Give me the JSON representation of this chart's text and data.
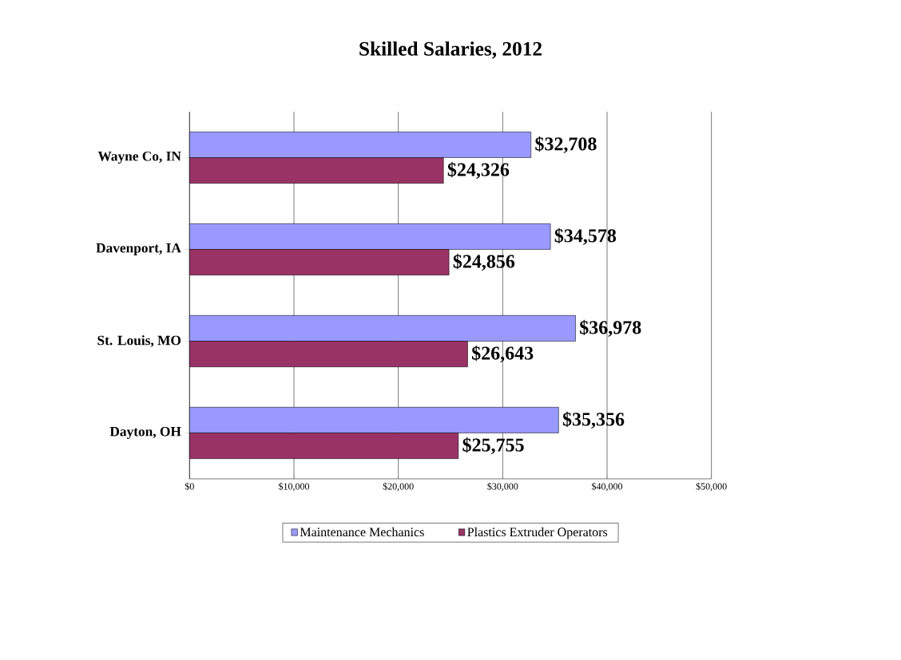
{
  "chart_data": {
    "type": "bar",
    "orientation": "horizontal",
    "title": "Skilled Salaries, 2012",
    "categories": [
      "Wayne Co, IN",
      "Davenport, IA",
      "St. Louis, MO",
      "Dayton, OH"
    ],
    "series": [
      {
        "name": "Maintenance Mechanics",
        "color": "#9999ff",
        "values": [
          32708,
          34578,
          36978,
          35356
        ],
        "value_labels": [
          "$32,708",
          "$34,578",
          "$36,978",
          "$35,356"
        ]
      },
      {
        "name": "Plastics Extruder Operators",
        "color": "#993366",
        "values": [
          24326,
          24856,
          26643,
          25755
        ],
        "value_labels": [
          "$24,326",
          "$24,856",
          "$26,643",
          "$25,755"
        ]
      }
    ],
    "xlim": [
      0,
      50000
    ],
    "xticks": [
      {
        "value": 0,
        "label": "$0"
      },
      {
        "value": 10000,
        "label": "$10,000"
      },
      {
        "value": 20000,
        "label": "$20,000"
      },
      {
        "value": 30000,
        "label": "$30,000"
      },
      {
        "value": 40000,
        "label": "$40,000"
      },
      {
        "value": 50000,
        "label": "$50,000"
      }
    ],
    "grid": "x",
    "legend": "bottom"
  }
}
